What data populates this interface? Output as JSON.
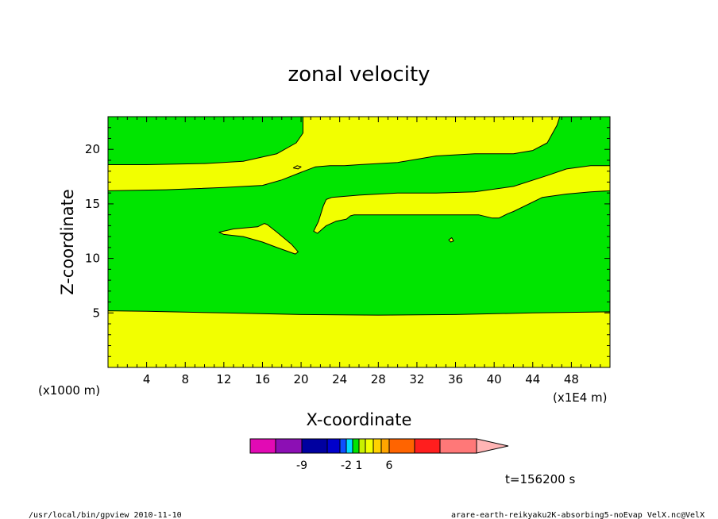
{
  "chart_data": {
    "type": "contour",
    "title": "zonal velocity",
    "xlabel": "X-coordinate",
    "ylabel": "Z-coordinate",
    "x_unit_label": "(x1E4 m)",
    "y_unit_label": "(x1000 m)",
    "xlim": [
      0,
      52
    ],
    "ylim": [
      0,
      23
    ],
    "x_ticks": [
      4,
      8,
      12,
      16,
      20,
      24,
      28,
      32,
      36,
      40,
      44,
      48
    ],
    "y_ticks": [
      5,
      10,
      15,
      20
    ],
    "fill_regions": [
      {
        "name": "yellow-band-bottom",
        "color": "#f2ff00",
        "outline": [
          [
            0,
            0
          ],
          [
            52,
            0
          ],
          [
            52,
            5.1
          ],
          [
            44,
            5.0
          ],
          [
            36,
            4.85
          ],
          [
            28,
            4.8
          ],
          [
            20,
            4.85
          ],
          [
            12,
            5.0
          ],
          [
            4,
            5.15
          ],
          [
            0,
            5.2
          ]
        ]
      },
      {
        "name": "yellow-band-upper",
        "color": "#f2ff00",
        "outline": [
          [
            0,
            16.2
          ],
          [
            6,
            16.3
          ],
          [
            12,
            16.5
          ],
          [
            16,
            16.7
          ],
          [
            18,
            17.2
          ],
          [
            20,
            17.9
          ],
          [
            21.5,
            18.4
          ],
          [
            23,
            18.5
          ],
          [
            24.5,
            18.5
          ],
          [
            26,
            18.6
          ],
          [
            30,
            18.8
          ],
          [
            34,
            19.4
          ],
          [
            38,
            19.6
          ],
          [
            42,
            19.6
          ],
          [
            44,
            19.9
          ],
          [
            45.5,
            20.6
          ],
          [
            46.5,
            22.2
          ],
          [
            46.8,
            23
          ],
          [
            20.2,
            23
          ],
          [
            20.2,
            21.5
          ],
          [
            19.5,
            20.6
          ],
          [
            17.5,
            19.6
          ],
          [
            14,
            18.9
          ],
          [
            10,
            18.7
          ],
          [
            4,
            18.6
          ],
          [
            0,
            18.6
          ]
        ]
      },
      {
        "name": "yellow-band-middle",
        "color": "#f2ff00",
        "outline": [
          [
            21.8,
            13.4
          ],
          [
            22.3,
            14.8
          ],
          [
            22.6,
            15.4
          ],
          [
            23.2,
            15.6
          ],
          [
            26,
            15.8
          ],
          [
            30,
            16.0
          ],
          [
            34,
            16.0
          ],
          [
            38,
            16.1
          ],
          [
            42,
            16.6
          ],
          [
            45.5,
            17.6
          ],
          [
            47.5,
            18.2
          ],
          [
            50,
            18.5
          ],
          [
            52,
            18.5
          ],
          [
            52,
            16.2
          ],
          [
            50,
            16.1
          ],
          [
            47.5,
            15.9
          ],
          [
            45,
            15.6
          ],
          [
            42,
            14.3
          ],
          [
            41.4,
            14.1
          ],
          [
            40.5,
            13.7
          ],
          [
            39.8,
            13.7
          ],
          [
            38.4,
            14.0
          ],
          [
            34,
            14.0
          ],
          [
            28,
            14.0
          ],
          [
            26,
            14.0
          ],
          [
            25.5,
            14.0
          ],
          [
            25.1,
            13.9
          ],
          [
            24.7,
            13.6
          ],
          [
            23.6,
            13.4
          ],
          [
            22.6,
            13.0
          ],
          [
            21.7,
            12.3
          ],
          [
            21.3,
            12.5
          ]
        ]
      },
      {
        "name": "yellow-blob-left",
        "color": "#f2ff00",
        "outline": [
          [
            11.5,
            12.4
          ],
          [
            13.0,
            12.7
          ],
          [
            15.5,
            12.9
          ],
          [
            16.2,
            13.2
          ],
          [
            16.5,
            13.1
          ],
          [
            17.5,
            12.4
          ],
          [
            19.0,
            11.3
          ],
          [
            19.7,
            10.6
          ],
          [
            19.4,
            10.4
          ],
          [
            17.5,
            11.0
          ],
          [
            16.0,
            11.5
          ],
          [
            14.0,
            12.0
          ],
          [
            12.0,
            12.2
          ]
        ]
      },
      {
        "name": "yellow-speck-upper",
        "color": "#f2ff00",
        "outline": [
          [
            19.2,
            18.3
          ],
          [
            19.6,
            18.5
          ],
          [
            20.0,
            18.4
          ],
          [
            19.7,
            18.2
          ]
        ]
      },
      {
        "name": "yellow-speck-right",
        "color": "#f2ff00",
        "outline": [
          [
            35.3,
            11.7
          ],
          [
            35.6,
            11.9
          ],
          [
            35.8,
            11.6
          ],
          [
            35.5,
            11.5
          ]
        ]
      }
    ],
    "background_color": "#00e500",
    "colorbar": {
      "colors": [
        "#e20ab4",
        "#8c0fb4",
        "#0000a0",
        "#0000cc",
        "#0e50ff",
        "#00dcff",
        "#00e500",
        "#c8f000",
        "#f2ff00",
        "#ffd200",
        "#ffa500",
        "#ff6400",
        "#ff1e1e",
        "#ff7878",
        "#ffb4b4"
      ],
      "labeled_ticks": [
        {
          "label": "-9",
          "boundary": 2
        },
        {
          "label": "-2",
          "boundary": 5
        },
        {
          "label": "1",
          "boundary": 7
        },
        {
          "label": "6",
          "boundary": 11
        }
      ]
    }
  },
  "annotations": {
    "time": "t=156200 s",
    "footer_left": "/usr/local/bin/gpview  2010-11-10",
    "footer_right": "arare-earth-reikyaku2K-absorbing5-noEvap_VelX.nc@VelX"
  }
}
